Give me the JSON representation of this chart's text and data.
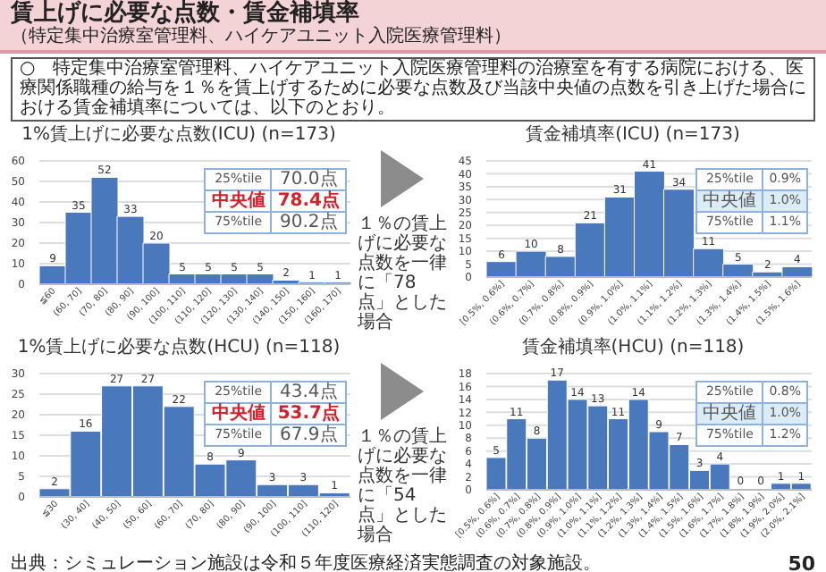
{
  "chart_data": [
    {
      "type": "bar",
      "title": "1%賃上げに必要な点数(ICU) (n=173)",
      "categories": [
        "≦60",
        "(60, 70]",
        "(70, 80]",
        "(80, 90]",
        "(90, 100]",
        "(100, 110]",
        "(110, 120]",
        "(120, 130]",
        "(130, 140]",
        "(140, 150]",
        "(150, 160]",
        "(160, 170]"
      ],
      "values": [
        9,
        35,
        52,
        33,
        20,
        5,
        5,
        5,
        5,
        2,
        1,
        1
      ],
      "color": "#4a78bd",
      "ylim": [
        0,
        60
      ],
      "yticks": [
        0,
        10,
        20,
        30,
        40,
        50,
        60
      ],
      "grid": "y",
      "data_labels": true,
      "annotations": [
        "賃上げに必要な点数・賃金補填率",
        "（特定集中治療室管理料、ハイケアユニット入院医療管理料）",
        "○　特定集中治療室管理料、ハイケアユニット入院医療管理料の治療室を有する病院における、医療関係職種の給与を１％を賃上げするために必要な点数及び当該中央値の点数を引き上げた場合における賃金補填率については、以下のとおり。",
        "25%tile",
        "70.0点",
        "中央値",
        "78.4点",
        "75%tile",
        "90.2点"
      ]
    },
    {
      "type": "bar",
      "title": "賃金補填率(ICU) (n=173)",
      "categories": [
        "[0.5%, 0.6%]",
        "(0.6%, 0.7%]",
        "(0.7%, 0.8%]",
        "(0.8%, 0.9%]",
        "(0.9%, 1.0%]",
        "(1.0%, 1.1%]",
        "(1.1%, 1.2%]",
        "(1.2%, 1.3%]",
        "(1.3%, 1.4%]",
        "(1.4%, 1.5%]",
        "(1.5%, 1.6%]"
      ],
      "values": [
        6,
        10,
        8,
        21,
        31,
        41,
        34,
        11,
        5,
        2,
        4
      ],
      "color": "#4a78bd",
      "ylim": [
        0,
        45
      ],
      "yticks": [
        0,
        5,
        10,
        15,
        20,
        25,
        30,
        35,
        40,
        45
      ],
      "grid": "y",
      "data_labels": true,
      "annotations": [
        "１％の賃上げに必要な点数を一律に「78点」とした場合",
        "25%tile",
        "0.9%",
        "中央値",
        "1.0%",
        "75%tile",
        "1.1%"
      ]
    },
    {
      "type": "bar",
      "title": "1%賃上げに必要な点数(HCU) (n=118)",
      "categories": [
        "≦30",
        "(30, 40]",
        "(40, 50]",
        "(50, 60]",
        "(60, 70]",
        "(70, 80]",
        "(80, 90]",
        "(90, 100]",
        "(100, 110]",
        "(110, 120]"
      ],
      "values": [
        2,
        16,
        27,
        27,
        22,
        8,
        9,
        3,
        3,
        1
      ],
      "color": "#4a78bd",
      "ylim": [
        0,
        30
      ],
      "yticks": [
        0,
        5,
        10,
        15,
        20,
        25,
        30
      ],
      "grid": "y",
      "data_labels": true,
      "annotations": [
        "25%tile",
        "43.4点",
        "中央値",
        "53.7点",
        "75%tile",
        "67.9点"
      ]
    },
    {
      "type": "bar",
      "title": "賃金補填率(HCU) (n=118)",
      "categories": [
        "[0.5%, 0.6%]",
        "(0.6%, 0.7%]",
        "(0.7%, 0.8%]",
        "(0.8%, 0.9%]",
        "(0.9%, 1.0%]",
        "(1.0%, 1.1%]",
        "(1.1%, 1.2%]",
        "(1.2%, 1.3%]",
        "(1.3%, 1.4%]",
        "(1.4%, 1.5%]",
        "(1.5%, 1.6%]",
        "(1.6%, 1.7%]",
        "(1.7%, 1.8%]",
        "(1.8%, 1.9%]",
        "(1.9%, 2.0%]",
        "(2.0%, 2.1%]"
      ],
      "values": [
        5,
        11,
        8,
        17,
        14,
        13,
        11,
        14,
        9,
        7,
        3,
        4,
        0,
        0,
        1,
        1
      ],
      "color": "#4a78bd",
      "ylim": [
        0,
        18
      ],
      "yticks": [
        0,
        2,
        4,
        6,
        8,
        10,
        12,
        14,
        16,
        18
      ],
      "grid": "y",
      "data_labels": true,
      "annotations": [
        "１％の賃上げに必要な点数を一律に「54点」とした場合",
        "25%tile",
        "0.8%",
        "中央値",
        "1.0%",
        "75%tile",
        "1.2%",
        "出典：シミュレーション施設は令和５年度医療経済実態調査の対象施設。",
        "50"
      ]
    }
  ]
}
